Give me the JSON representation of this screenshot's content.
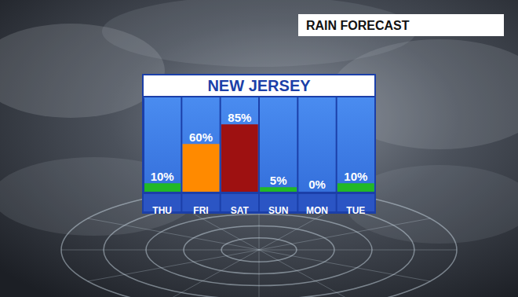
{
  "chart_data": {
    "type": "bar",
    "title": "NEW JERSEY",
    "subtitle": "RAIN FORECAST",
    "categories": [
      "THU",
      "FRI",
      "SAT",
      "SUN",
      "MON",
      "TUE"
    ],
    "values": [
      10,
      60,
      85,
      5,
      0,
      10
    ],
    "value_labels": [
      "10%",
      "60%",
      "85%",
      "5%",
      "0%",
      "10%"
    ],
    "colors": [
      "#22b826",
      "#ff8a00",
      "#9e1111",
      "#22b826",
      "#ffffff",
      "#22b826"
    ],
    "ylim": [
      0,
      120
    ],
    "data_labels": true,
    "tick_labels": "x",
    "grid": false
  }
}
